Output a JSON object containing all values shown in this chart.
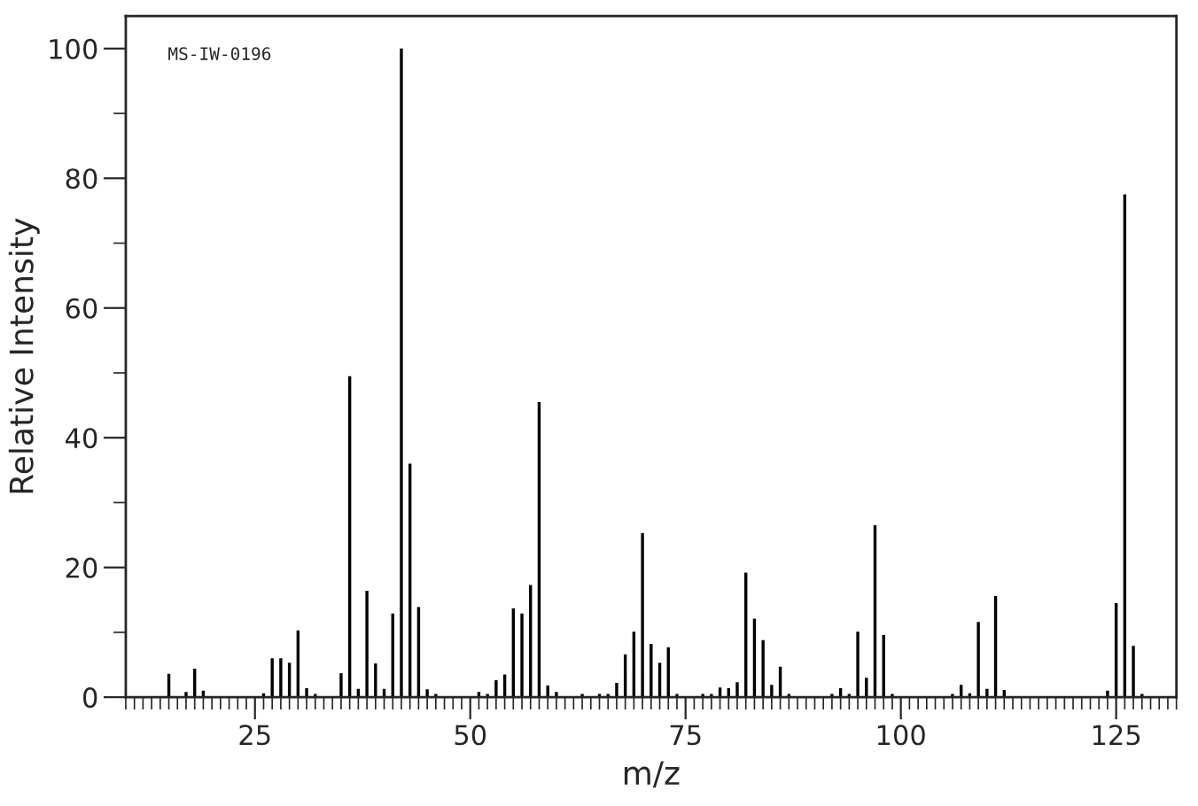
{
  "chart_data": {
    "type": "bar",
    "xlabel": "m/z",
    "ylabel": "Relative Intensity",
    "annotations": [
      "MS-IW-0196"
    ],
    "x": [
      15,
      17,
      18,
      19,
      26,
      27,
      28,
      29,
      30,
      31,
      32,
      35,
      36,
      37,
      38,
      39,
      40,
      41,
      42,
      43,
      44,
      45,
      46,
      51,
      52,
      53,
      54,
      55,
      56,
      57,
      58,
      59,
      60,
      63,
      65,
      66,
      67,
      68,
      69,
      70,
      71,
      72,
      73,
      74,
      77,
      78,
      79,
      80,
      81,
      82,
      83,
      84,
      85,
      86,
      87,
      92,
      93,
      94,
      95,
      96,
      97,
      98,
      99,
      106,
      107,
      108,
      109,
      110,
      111,
      112,
      124,
      125,
      126,
      127,
      128
    ],
    "values": [
      3.6,
      0.8,
      4.4,
      1.0,
      0.6,
      6.0,
      6.0,
      5.3,
      10.3,
      1.4,
      0.5,
      3.7,
      49.5,
      1.3,
      16.4,
      5.2,
      1.3,
      12.9,
      100,
      36,
      13.9,
      1.2,
      0.5,
      0.8,
      0.5,
      2.6,
      3.5,
      13.7,
      12.9,
      17.3,
      45.5,
      1.8,
      0.8,
      0.5,
      0.5,
      0.5,
      2.2,
      6.6,
      10.1,
      25.3,
      8.2,
      5.3,
      7.7,
      0.5,
      0.5,
      0.5,
      1.5,
      1.4,
      2.3,
      19.2,
      12.1,
      8.8,
      1.9,
      4.7,
      0.5,
      0.5,
      1.4,
      0.5,
      10.1,
      3.0,
      26.5,
      9.6,
      0.5,
      0.5,
      1.9,
      0.6,
      11.6,
      1.3,
      15.6,
      1.1,
      1.0,
      14.5,
      77.5,
      7.9,
      0.5
    ],
    "color": "#000000",
    "xlim": [
      10,
      132
    ],
    "xticks": [
      25,
      50,
      75,
      100,
      125
    ],
    "ylim": [
      0,
      105
    ],
    "yticks": [
      0,
      20,
      40,
      60,
      80,
      100
    ],
    "grid": false,
    "legend": false
  }
}
